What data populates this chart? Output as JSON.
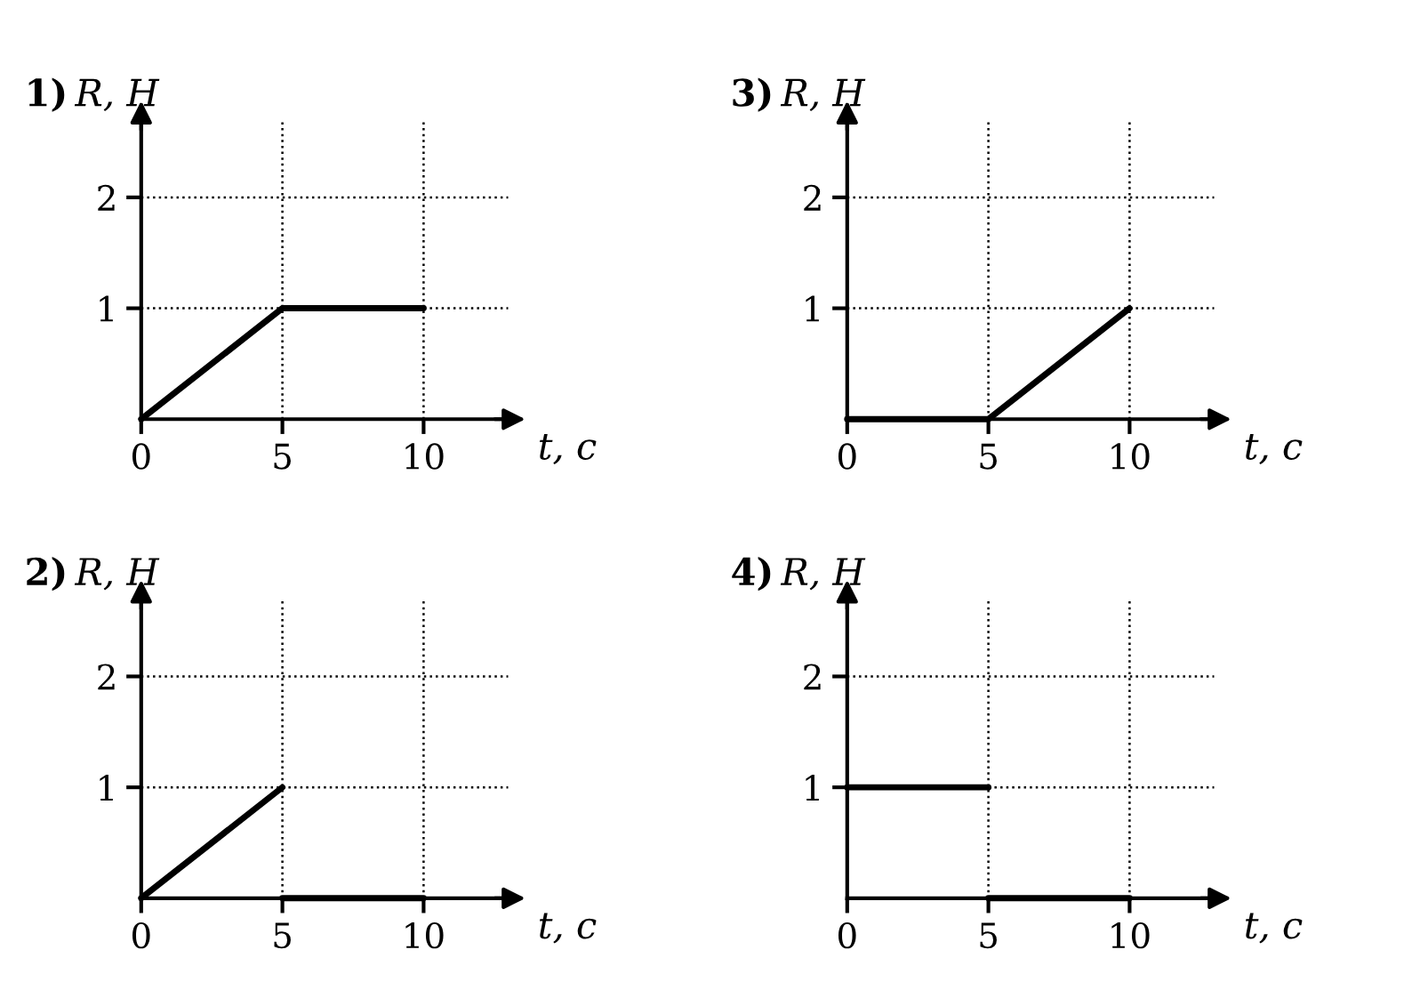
{
  "chart_data": [
    {
      "type": "line",
      "title": "1)",
      "ylabel": "R, Н",
      "xlabel": "t, с",
      "xlim": [
        0,
        13
      ],
      "ylim": [
        0,
        2.7
      ],
      "xticks": [
        0,
        5,
        10
      ],
      "yticks": [
        1,
        2
      ],
      "grid": "dotted",
      "line_style": "solid",
      "color": "#000000",
      "series": [
        {
          "x": [
            0,
            5,
            10
          ],
          "values": [
            0,
            1,
            1
          ]
        }
      ]
    },
    {
      "type": "line",
      "title": "3)",
      "ylabel": "R, Н",
      "xlabel": "t, с",
      "xlim": [
        0,
        13
      ],
      "ylim": [
        0,
        2.7
      ],
      "xticks": [
        0,
        5,
        10
      ],
      "yticks": [
        1,
        2
      ],
      "grid": "dotted",
      "line_style": "solid",
      "color": "#000000",
      "series": [
        {
          "x": [
            0,
            5,
            10
          ],
          "values": [
            0,
            0,
            1
          ]
        }
      ]
    },
    {
      "type": "line",
      "title": "2)",
      "ylabel": "R, Н",
      "xlabel": "t, с",
      "xlim": [
        0,
        13
      ],
      "ylim": [
        0,
        2.7
      ],
      "xticks": [
        0,
        5,
        10
      ],
      "yticks": [
        1,
        2
      ],
      "grid": "dotted",
      "line_style": "solid",
      "color": "#000000",
      "series": [
        {
          "x": [
            0,
            5
          ],
          "values": [
            0,
            1
          ]
        },
        {
          "x": [
            5,
            10
          ],
          "values": [
            0,
            0
          ]
        }
      ]
    },
    {
      "type": "line",
      "title": "4)",
      "ylabel": "R, Н",
      "xlabel": "t, с",
      "xlim": [
        0,
        13
      ],
      "ylim": [
        0,
        2.7
      ],
      "xticks": [
        0,
        5,
        10
      ],
      "yticks": [
        1,
        2
      ],
      "grid": "dotted",
      "line_style": "solid",
      "color": "#000000",
      "series": [
        {
          "x": [
            0,
            5
          ],
          "values": [
            1,
            1
          ]
        },
        {
          "x": [
            5,
            10
          ],
          "values": [
            0,
            0
          ]
        }
      ]
    }
  ]
}
